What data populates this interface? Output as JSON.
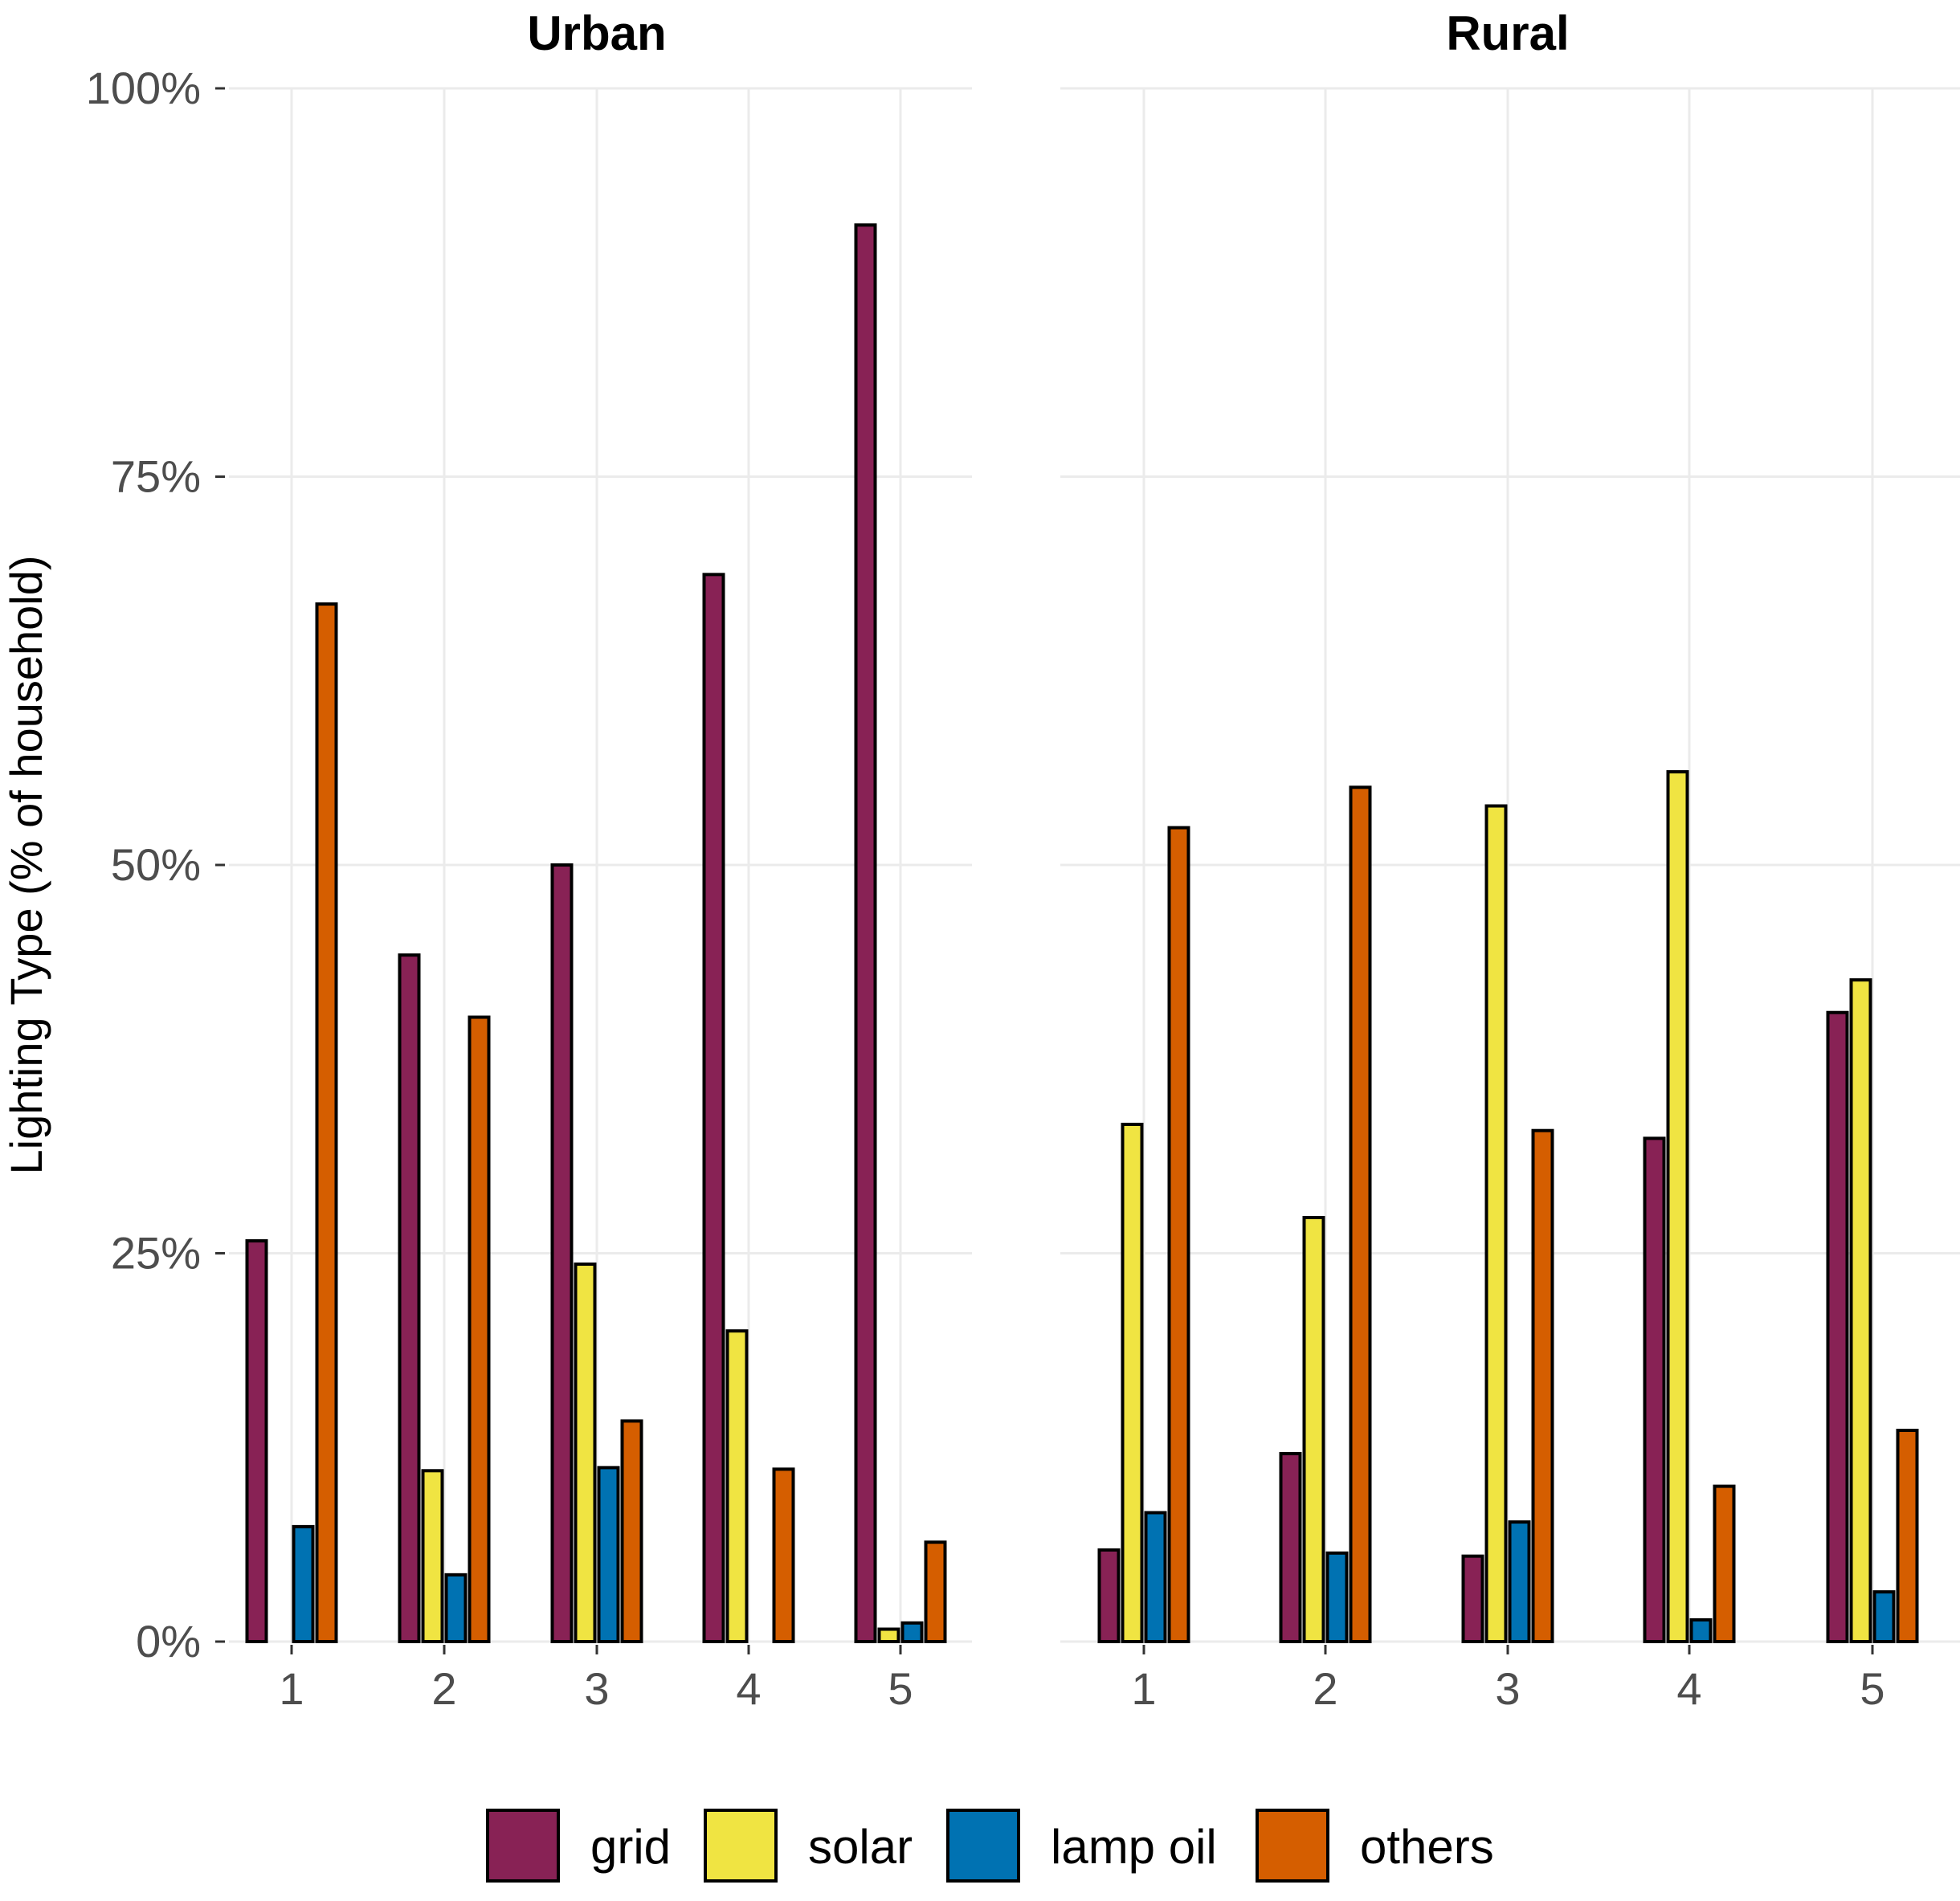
{
  "chart_data": {
    "type": "bar",
    "ylabel": "Lighting Type (% of household)",
    "xlabel": "",
    "ylim": [
      0,
      100
    ],
    "yticks": [
      "0%",
      "25%",
      "50%",
      "75%",
      "100%"
    ],
    "ytick_values": [
      0,
      25,
      50,
      75,
      100
    ],
    "categories": [
      "1",
      "2",
      "3",
      "4",
      "5"
    ],
    "grid": true,
    "legend_position": "bottom",
    "legend": [
      {
        "name": "grid",
        "color": "#882255"
      },
      {
        "name": "solar",
        "color": "#F0E442"
      },
      {
        "name": "lamp oil",
        "color": "#0072B2"
      },
      {
        "name": "others",
        "color": "#D55E00"
      }
    ],
    "panels": [
      {
        "title": "Urban",
        "series": [
          {
            "name": "grid",
            "values": [
              25.8,
              44.2,
              50.0,
              68.7,
              91.2
            ]
          },
          {
            "name": "solar",
            "values": [
              0,
              11.0,
              24.3,
              20.0,
              0.8
            ]
          },
          {
            "name": "lamp oil",
            "values": [
              7.4,
              4.3,
              11.2,
              0,
              1.2
            ]
          },
          {
            "name": "others",
            "values": [
              66.8,
              40.2,
              14.2,
              11.1,
              6.4
            ]
          }
        ]
      },
      {
        "title": "Rural",
        "series": [
          {
            "name": "grid",
            "values": [
              5.9,
              12.1,
              5.5,
              32.4,
              40.5
            ]
          },
          {
            "name": "solar",
            "values": [
              33.3,
              27.3,
              53.8,
              56.0,
              42.6
            ]
          },
          {
            "name": "lamp oil",
            "values": [
              8.3,
              5.7,
              7.7,
              1.4,
              3.2
            ]
          },
          {
            "name": "others",
            "values": [
              52.4,
              55.0,
              32.9,
              10.0,
              13.6
            ]
          }
        ]
      }
    ]
  }
}
